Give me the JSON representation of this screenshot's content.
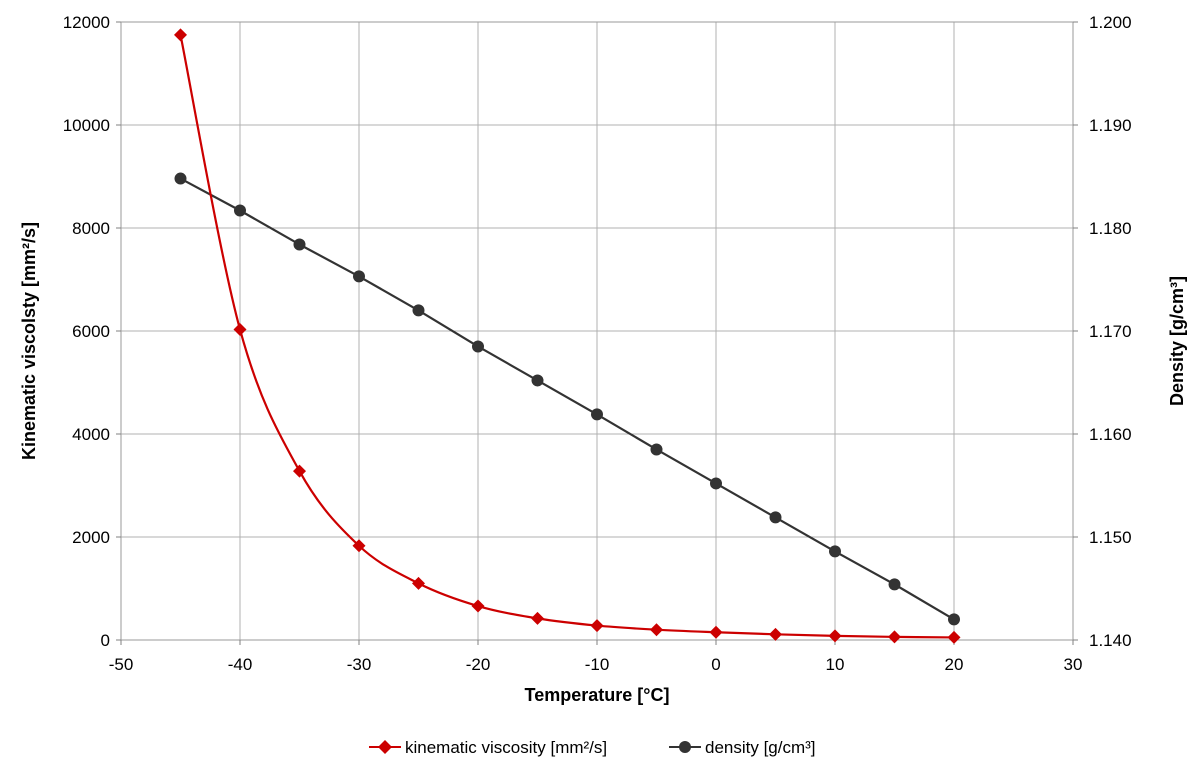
{
  "chart_data": {
    "type": "line",
    "xlabel": "Temperature  [°C]",
    "ylabel": "Kinematic viscolsty  [mm²/s]",
    "y2label": "Density  [g/cm³]",
    "xlim": [
      -50,
      30
    ],
    "ylim": [
      0,
      12000
    ],
    "y2lim": [
      1.14,
      1.2
    ],
    "x_ticks": [
      "-50",
      "-40",
      "-30",
      "-20",
      "-10",
      "0",
      "10",
      "20",
      "30"
    ],
    "y_ticks": [
      "0",
      "2000",
      "4000",
      "6000",
      "8000",
      "10000",
      "12000"
    ],
    "y2_ticks": [
      "1.140",
      "1.150",
      "1.160",
      "1.170",
      "1.180",
      "1.190",
      "1.200"
    ],
    "grid": true,
    "legend_position": "bottom-center",
    "x": [
      -45,
      -40,
      -35,
      -30,
      -25,
      -20,
      -15,
      -10,
      -5,
      0,
      5,
      10,
      15,
      20
    ],
    "series": [
      {
        "name": "kinematic viscosity [mm²/s]",
        "axis": "left",
        "color": "#cc0000",
        "marker": "diamond",
        "smooth": true,
        "values": [
          11750,
          6030,
          3280,
          1830,
          1100,
          660,
          420,
          280,
          200,
          150,
          110,
          80,
          60,
          50
        ]
      },
      {
        "name": "density [g/cm³]",
        "axis": "right",
        "color": "#333333",
        "marker": "circle",
        "smooth": false,
        "values": [
          1.1848,
          1.1817,
          1.1784,
          1.1753,
          1.172,
          1.1685,
          1.1652,
          1.1619,
          1.1585,
          1.1552,
          1.1519,
          1.1486,
          1.1454,
          1.142
        ]
      }
    ]
  }
}
